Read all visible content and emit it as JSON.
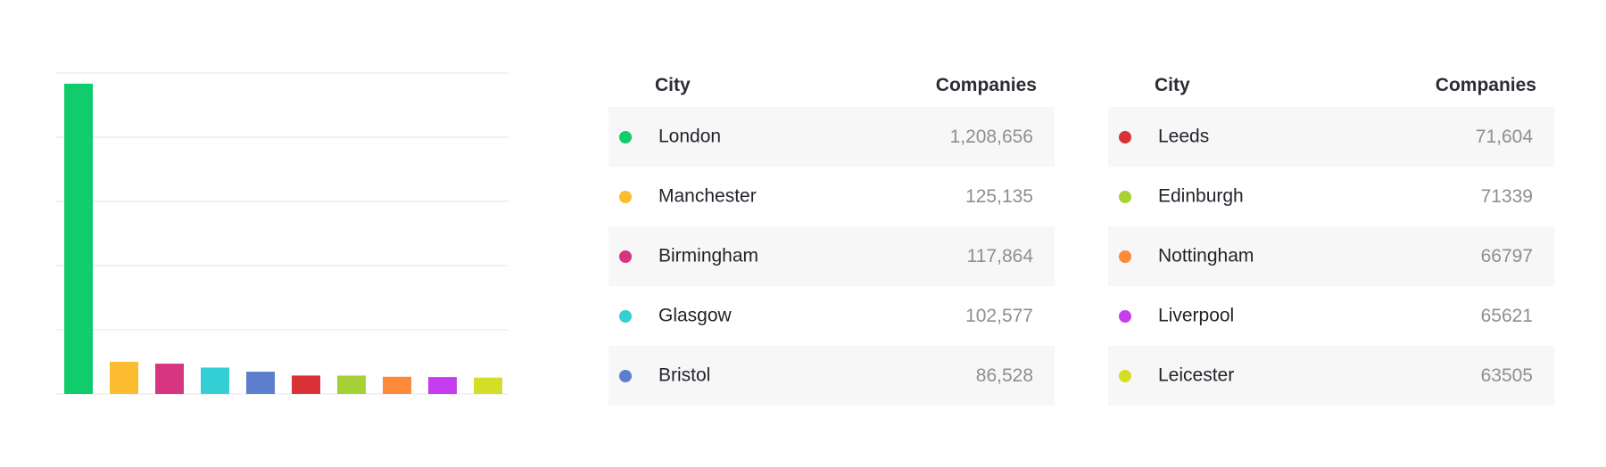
{
  "chart_data": {
    "type": "bar",
    "categories": [
      "London",
      "Manchester",
      "Birmingham",
      "Glasgow",
      "Bristol",
      "Leeds",
      "Edinburgh",
      "Nottingham",
      "Liverpool",
      "Leicester"
    ],
    "values": [
      1208656,
      125135,
      117864,
      102577,
      86528,
      71604,
      71339,
      66797,
      65621,
      63505
    ],
    "colors": [
      "#10cc6b",
      "#fbbc2f",
      "#d7357f",
      "#33cfd5",
      "#5c7fcd",
      "#d93236",
      "#a6d136",
      "#fc8a39",
      "#c63cef",
      "#d3de25"
    ],
    "ylim": [
      0,
      1250000
    ],
    "grid": true,
    "legend": "none"
  },
  "tables": [
    {
      "headers": {
        "city": "City",
        "count": "Companies"
      },
      "rows": [
        {
          "city": "London",
          "count": "1,208,656",
          "color": "#10cc6b"
        },
        {
          "city": "Manchester",
          "count": "125,135",
          "color": "#fbbc2f"
        },
        {
          "city": "Birmingham",
          "count": "117,864",
          "color": "#d7357f"
        },
        {
          "city": "Glasgow",
          "count": "102,577",
          "color": "#33cfd5"
        },
        {
          "city": "Bristol",
          "count": "86,528",
          "color": "#5c7fcd"
        }
      ]
    },
    {
      "headers": {
        "city": "City",
        "count": "Companies"
      },
      "rows": [
        {
          "city": "Leeds",
          "count": "71,604",
          "color": "#d93236"
        },
        {
          "city": "Edinburgh",
          "count": "71339",
          "color": "#a6d136"
        },
        {
          "city": "Nottingham",
          "count": "66797",
          "color": "#fc8a39"
        },
        {
          "city": "Liverpool",
          "count": "65621",
          "color": "#c63cef"
        },
        {
          "city": "Leicester",
          "count": "63505",
          "color": "#d3de25"
        }
      ]
    }
  ]
}
